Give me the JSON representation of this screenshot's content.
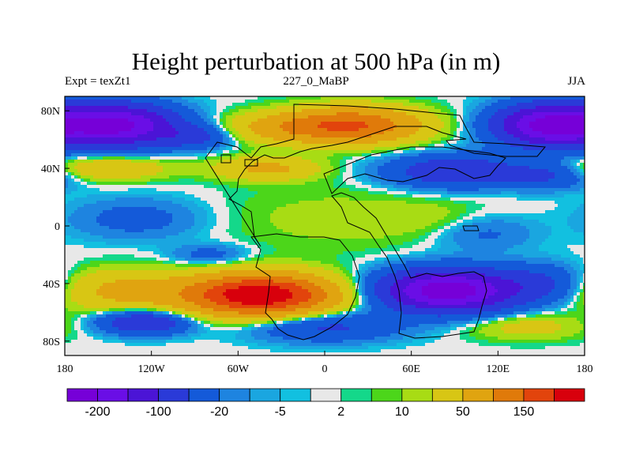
{
  "chart_data": {
    "type": "heatmap",
    "title": "Height perturbation at 500 hPa (in m)",
    "left_string": "Expt = texZt1",
    "center_string": "227_0_MaBP",
    "right_string": "JJA",
    "x_ticks": [
      "180",
      "120W",
      "60W",
      "0",
      "60E",
      "120E",
      "180"
    ],
    "y_ticks": [
      "80N",
      "40N",
      "0",
      "40S",
      "80S"
    ],
    "xlim": [
      -180,
      180
    ],
    "ylim": [
      -90,
      90
    ],
    "colorbar": {
      "colors": [
        "#7600d8",
        "#6a0ee6",
        "#4b14d6",
        "#2a3ad8",
        "#145ad9",
        "#1e84e0",
        "#1aa6e0",
        "#12c0e0",
        "#e8e8e8",
        "#14d88a",
        "#4cd61a",
        "#a8dc14",
        "#d8c614",
        "#e0a410",
        "#e07a0a",
        "#e2440c",
        "#d8000c"
      ],
      "labels": [
        "-200",
        "-100",
        "-20",
        "-5",
        "2",
        "10",
        "50",
        "150"
      ]
    },
    "field_anomalies": [
      {
        "lon": -145,
        "lat": 70,
        "value": -220,
        "w": 40,
        "h": 14
      },
      {
        "lon": 155,
        "lat": 70,
        "value": -220,
        "w": 35,
        "h": 14
      },
      {
        "lon": 20,
        "lat": 70,
        "value": 150,
        "w": 45,
        "h": 12
      },
      {
        "lon": -30,
        "lat": 68,
        "value": 60,
        "w": 40,
        "h": 10
      },
      {
        "lon": -90,
        "lat": 62,
        "value": -60,
        "w": 25,
        "h": 8
      },
      {
        "lon": -40,
        "lat": 40,
        "value": 60,
        "w": 35,
        "h": 8
      },
      {
        "lon": -150,
        "lat": 40,
        "value": 50,
        "w": 40,
        "h": 8
      },
      {
        "lon": 90,
        "lat": 38,
        "value": -90,
        "w": 45,
        "h": 11
      },
      {
        "lon": 155,
        "lat": 35,
        "value": -50,
        "w": 30,
        "h": 9
      },
      {
        "lon": 10,
        "lat": 5,
        "value": 15,
        "w": 80,
        "h": 22
      },
      {
        "lon": -130,
        "lat": 5,
        "value": -30,
        "w": 45,
        "h": 14
      },
      {
        "lon": 110,
        "lat": -5,
        "value": -25,
        "w": 35,
        "h": 12
      },
      {
        "lon": 75,
        "lat": 5,
        "value": 10,
        "w": 35,
        "h": 12
      },
      {
        "lon": -80,
        "lat": -20,
        "value": -30,
        "w": 25,
        "h": 7
      },
      {
        "lon": -45,
        "lat": -48,
        "value": 250,
        "w": 50,
        "h": 14
      },
      {
        "lon": -140,
        "lat": -45,
        "value": 60,
        "w": 45,
        "h": 14
      },
      {
        "lon": 85,
        "lat": -45,
        "value": -240,
        "w": 45,
        "h": 14
      },
      {
        "lon": 150,
        "lat": -40,
        "value": -50,
        "w": 30,
        "h": 13
      },
      {
        "lon": -125,
        "lat": -67,
        "value": -100,
        "w": 30,
        "h": 8
      },
      {
        "lon": 0,
        "lat": -70,
        "value": -60,
        "w": 50,
        "h": 10
      },
      {
        "lon": 140,
        "lat": -70,
        "value": 30,
        "w": 40,
        "h": 9
      }
    ]
  }
}
